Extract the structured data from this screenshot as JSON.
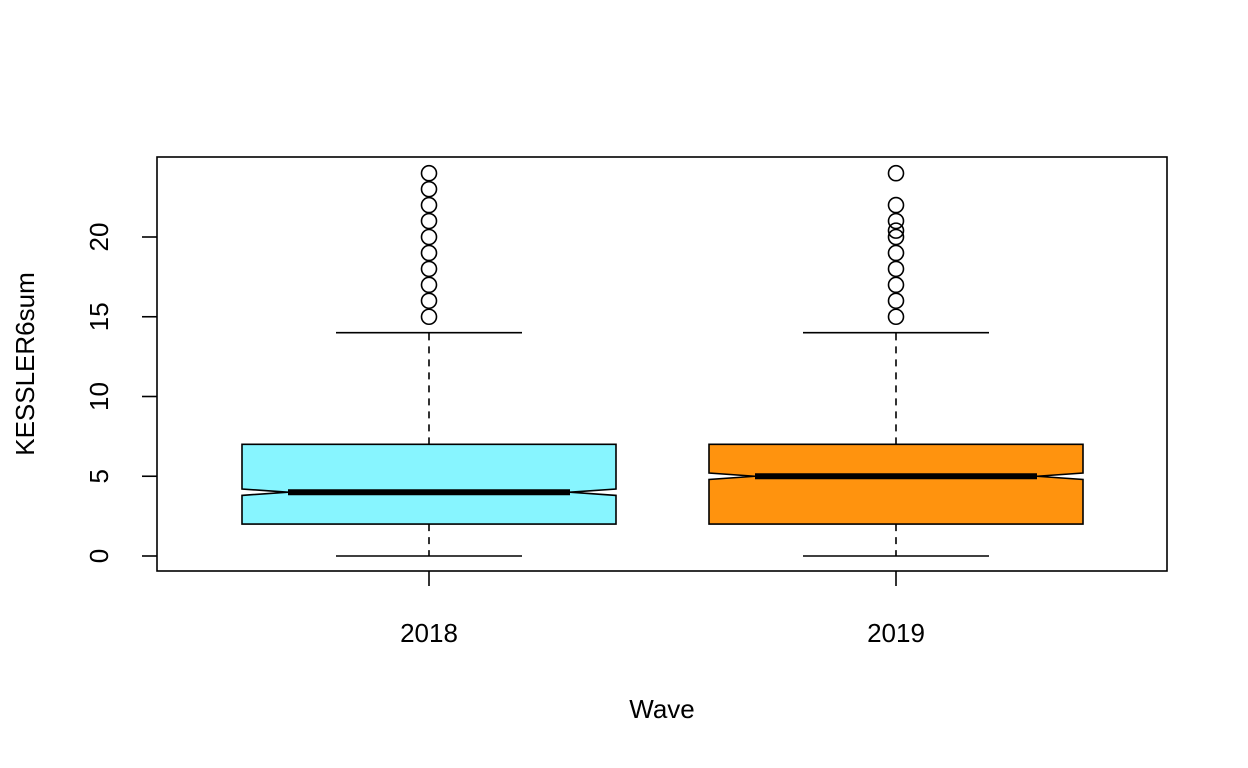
{
  "chart_data": {
    "type": "boxplot",
    "notched": true,
    "xlabel": "Wave",
    "ylabel": "KESSLER6sum",
    "ylim": [
      -1,
      25
    ],
    "yticks": [
      0,
      5,
      10,
      15,
      20
    ],
    "categories": [
      "2018",
      "2019"
    ],
    "boxes": [
      {
        "category": "2018",
        "color": "#87F5FF",
        "whisker_low": 0,
        "q1": 2,
        "median": 4,
        "q3": 7,
        "whisker_high": 14,
        "notch_low": 3.8,
        "notch_high": 4.2,
        "outliers": [
          15,
          16,
          17,
          18,
          19,
          20,
          21,
          22,
          23,
          24
        ]
      },
      {
        "category": "2019",
        "color": "#FF930E",
        "whisker_low": 0,
        "q1": 2,
        "median": 5,
        "q3": 7,
        "whisker_high": 14,
        "notch_low": 4.8,
        "notch_high": 5.2,
        "outliers": [
          15,
          16,
          17,
          18,
          19,
          20,
          20.4,
          21,
          22,
          24
        ]
      }
    ]
  }
}
